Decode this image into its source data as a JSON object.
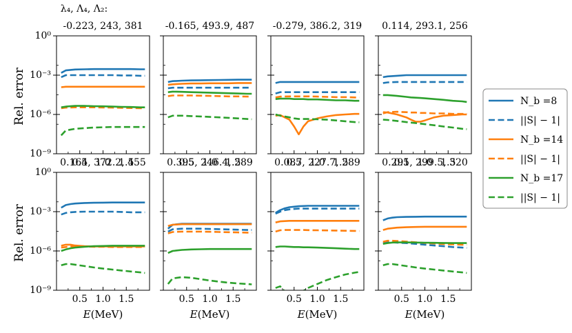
{
  "figure": {
    "param_header": "λ₄, Λ₄, Λ₂:",
    "xlabel": "E(MeV)",
    "ylabel": "Rel. error",
    "x_ticks": [
      0.5,
      1.0,
      1.5
    ],
    "xlim": [
      0.0,
      2.0
    ],
    "y_ticks": [
      1e-09,
      1e-06,
      0.001,
      1.0
    ],
    "y_tick_labels": [
      "10⁻⁹",
      "10⁻⁶",
      "10⁻³",
      "10⁰"
    ],
    "y_scale": "log",
    "ylim": [
      1e-09,
      1.0
    ],
    "legend_placement": "right",
    "colors": {
      "Nb8": "#1f77b4",
      "Nb14": "#ff7f0e",
      "Nb17": "#2ca02c"
    }
  },
  "legend": [
    {
      "label": "N_b =8",
      "color": "#1f77b4",
      "dash": false
    },
    {
      "label": "||S| − 1|",
      "color": "#1f77b4",
      "dash": true
    },
    {
      "label": "N_b =14",
      "color": "#ff7f0e",
      "dash": false
    },
    {
      "label": "||S| − 1|",
      "color": "#ff7f0e",
      "dash": true
    },
    {
      "label": "N_b =17",
      "color": "#2ca02c",
      "dash": false
    },
    {
      "label": "||S| − 1|",
      "color": "#2ca02c",
      "dash": true
    }
  ],
  "chart_data": [
    {
      "type": "line",
      "title": "-0.223, 243, 381",
      "xlabel": "",
      "ylabel": "Rel. error",
      "x": [
        0.1,
        0.2,
        0.4,
        0.6,
        0.8,
        1.0,
        1.2,
        1.4,
        1.6,
        1.8,
        1.9
      ],
      "series": [
        {
          "name": "N_b =8",
          "values": [
            0.0015,
            0.0023,
            0.0027,
            0.0028,
            0.0029,
            0.0029,
            0.0029,
            0.0029,
            0.0029,
            0.0028,
            0.0028
          ]
        },
        {
          "name": "||S| − 1|",
          "values": [
            0.0007,
            0.001,
            0.001,
            0.001,
            0.001,
            0.001,
            0.001,
            0.00095,
            0.00095,
            0.0009,
            0.0009
          ]
        },
        {
          "name": "N_b =14",
          "values": [
            0.00012,
            0.00013,
            0.00013,
            0.00013,
            0.00013,
            0.00013,
            0.00013,
            0.00013,
            0.00013,
            0.00013,
            0.00013
          ]
        },
        {
          "name": "||S| − 1|",
          "values": [
            3e-06,
            3.3e-06,
            3.5e-06,
            3.5e-06,
            3.5e-06,
            3.4e-06,
            3.3e-06,
            3.2e-06,
            3.1e-06,
            3e-06,
            3e-06
          ]
        },
        {
          "name": "N_b =17",
          "values": [
            3.5e-06,
            4e-06,
            4.5e-06,
            4.5e-06,
            4.3e-06,
            4.2e-06,
            4e-06,
            3.8e-06,
            3.7e-06,
            3.5e-06,
            3.5e-06
          ]
        },
        {
          "name": "||S| − 1|",
          "values": [
            2.5e-08,
            6e-08,
            8e-08,
            9e-08,
            1e-07,
            1.05e-07,
            1.1e-07,
            1.1e-07,
            1.1e-07,
            1.1e-07,
            1.1e-07
          ]
        }
      ]
    },
    {
      "type": "line",
      "title": "-0.165, 493.9, 487",
      "xlabel": "",
      "ylabel": "",
      "x": [
        0.1,
        0.2,
        0.4,
        0.6,
        0.8,
        1.0,
        1.2,
        1.4,
        1.6,
        1.8,
        1.9
      ],
      "series": [
        {
          "name": "N_b =8",
          "values": [
            0.0003,
            0.00035,
            0.00038,
            0.0004,
            0.00041,
            0.00042,
            0.00043,
            0.00044,
            0.00045,
            0.00045,
            0.00045
          ]
        },
        {
          "name": "||S| − 1|",
          "values": [
            0.0001,
            0.00011,
            0.00011,
            0.00011,
            0.00011,
            0.00011,
            0.00011,
            0.00011,
            0.00011,
            0.00011,
            0.00011
          ]
        },
        {
          "name": "N_b =14",
          "values": [
            0.00018,
            0.0002,
            0.00022,
            0.00023,
            0.00023,
            0.00024,
            0.00024,
            0.00024,
            0.00025,
            0.00025,
            0.00025
          ]
        },
        {
          "name": "||S| − 1|",
          "values": [
            2.5e-05,
            2.8e-05,
            2.8e-05,
            2.8e-05,
            2.7e-05,
            2.6e-05,
            2.5e-05,
            2.4e-05,
            2.4e-05,
            2.3e-05,
            2.3e-05
          ]
        },
        {
          "name": "N_b =17",
          "values": [
            5e-05,
            5.5e-05,
            5.3e-05,
            5e-05,
            4.8e-05,
            4.6e-05,
            4.4e-05,
            4.2e-05,
            4e-05,
            3.8e-05,
            3.8e-05
          ]
        },
        {
          "name": "||S| − 1|",
          "values": [
            6e-07,
            8e-07,
            8e-07,
            7.5e-07,
            7e-07,
            6.5e-07,
            6e-07,
            5.5e-07,
            5e-07,
            4.5e-07,
            4.3e-07
          ]
        }
      ]
    },
    {
      "type": "line",
      "title": "-0.279, 386.2, 319",
      "xlabel": "",
      "ylabel": "",
      "x": [
        0.1,
        0.2,
        0.4,
        0.5,
        0.6,
        0.7,
        0.8,
        1.0,
        1.2,
        1.4,
        1.6,
        1.8,
        1.9
      ],
      "series": [
        {
          "name": "N_b =8",
          "values": [
            0.00025,
            0.0003,
            0.0003,
            0.0003,
            0.0003,
            0.0003,
            0.0003,
            0.0003,
            0.0003,
            0.0003,
            0.0003,
            0.0003,
            0.0003
          ]
        },
        {
          "name": "||S| − 1|",
          "values": [
            4e-05,
            5e-05,
            5e-05,
            5e-05,
            5e-05,
            5e-05,
            5e-05,
            5e-05,
            5e-05,
            5e-05,
            5e-05,
            5e-05,
            5e-05
          ]
        },
        {
          "name": "N_b =14",
          "values": [
            8e-07,
            9e-07,
            4e-07,
            1.2e-07,
            3e-08,
            1.2e-07,
            3e-07,
            5e-07,
            7e-07,
            9e-07,
            1e-06,
            1.1e-06,
            1.1e-06
          ]
        },
        {
          "name": "||S| − 1|",
          "values": [
            2e-05,
            2.3e-05,
            2.4e-05,
            2.4e-05,
            2.4e-05,
            2.4e-05,
            2.4e-05,
            2.3e-05,
            2.2e-05,
            2.1e-05,
            2.1e-05,
            2e-05,
            2e-05
          ]
        },
        {
          "name": "N_b =17",
          "values": [
            1.5e-05,
            1.6e-05,
            1.6e-05,
            1.5e-05,
            1.5e-05,
            1.5e-05,
            1.4e-05,
            1.4e-05,
            1.3e-05,
            1.2e-05,
            1.2e-05,
            1.1e-05,
            1.1e-05
          ]
        },
        {
          "name": "||S| − 1|",
          "values": [
            1e-06,
            8e-07,
            6e-07,
            5e-07,
            4.5e-07,
            4.5e-07,
            4.5e-07,
            4.3e-07,
            4e-07,
            3.5e-07,
            3e-07,
            2.6e-07,
            2.5e-07
          ]
        }
      ]
    },
    {
      "type": "line",
      "title": "0.114, 293.1, 256",
      "xlabel": "",
      "ylabel": "",
      "x": [
        0.1,
        0.2,
        0.4,
        0.6,
        0.7,
        0.8,
        0.9,
        1.0,
        1.2,
        1.4,
        1.6,
        1.8,
        1.9
      ],
      "series": [
        {
          "name": "N_b =8",
          "values": [
            0.0007,
            0.0008,
            0.0009,
            0.001,
            0.001,
            0.001,
            0.001,
            0.001,
            0.001,
            0.001,
            0.001,
            0.001,
            0.001
          ]
        },
        {
          "name": "||S| − 1|",
          "values": [
            0.00025,
            0.00028,
            0.0003,
            0.0003,
            0.0003,
            0.0003,
            0.0003,
            0.0003,
            0.0003,
            0.0003,
            0.0003,
            0.0003,
            0.0003
          ]
        },
        {
          "name": "N_b =14",
          "values": [
            1.5e-06,
            1.4e-06,
            1e-06,
            6e-07,
            4e-07,
            2.8e-07,
            2.8e-07,
            3.5e-07,
            6e-07,
            8e-07,
            9e-07,
            1e-06,
            1e-06
          ]
        },
        {
          "name": "||S| − 1|",
          "values": [
            1.2e-06,
            1.5e-06,
            1.6e-06,
            1.5e-06,
            1.4e-06,
            1.4e-06,
            1.3e-06,
            1.3e-06,
            1.2e-06,
            1.2e-06,
            1.1e-06,
            1.1e-06,
            1.1e-06
          ]
        },
        {
          "name": "N_b =17",
          "values": [
            3e-05,
            3e-05,
            2.6e-05,
            2.2e-05,
            2e-05,
            1.9e-05,
            1.8e-05,
            1.7e-05,
            1.5e-05,
            1.3e-05,
            1.1e-05,
            1e-05,
            9e-06
          ]
        },
        {
          "name": "||S| − 1|",
          "values": [
            4e-07,
            3.8e-07,
            3.2e-07,
            2.6e-07,
            2.4e-07,
            2.2e-07,
            2e-07,
            1.8e-07,
            1.5e-07,
            1.2e-07,
            1e-07,
            8e-08,
            7.5e-08
          ]
        }
      ]
    },
    {
      "type": "line",
      "title": "0.164, 372.2, 455",
      "xlabel": "E(MeV)",
      "ylabel": "Rel. error",
      "x": [
        0.1,
        0.2,
        0.3,
        0.4,
        0.6,
        0.8,
        1.0,
        1.2,
        1.4,
        1.6,
        1.8,
        1.9
      ],
      "series": [
        {
          "name": "N_b =8",
          "values": [
            0.002,
            0.0032,
            0.0038,
            0.0042,
            0.0046,
            0.0048,
            0.0049,
            0.005,
            0.005,
            0.005,
            0.005,
            0.005
          ]
        },
        {
          "name": "||S| − 1|",
          "values": [
            0.0006,
            0.0008,
            0.0009,
            0.00095,
            0.001,
            0.001,
            0.001,
            0.001,
            0.00095,
            0.0009,
            0.0009,
            0.0009
          ]
        },
        {
          "name": "N_b =14",
          "values": [
            2.5e-06,
            3e-06,
            3e-06,
            2.6e-06,
            2.3e-06,
            2.2e-06,
            2.2e-06,
            2.2e-06,
            2.2e-06,
            2.2e-06,
            2.2e-06,
            2.2e-06
          ]
        },
        {
          "name": "||S| − 1|",
          "values": [
            1.8e-06,
            2e-06,
            2.2e-06,
            2.2e-06,
            2.2e-06,
            2.1e-06,
            2.1e-06,
            2e-06,
            2e-06,
            2e-06,
            2e-06,
            2e-06
          ]
        },
        {
          "name": "N_b =17",
          "values": [
            1e-06,
            1.3e-06,
            1.6e-06,
            1.8e-06,
            2.1e-06,
            2.3e-06,
            2.4e-06,
            2.5e-06,
            2.5e-06,
            2.5e-06,
            2.5e-06,
            2.5e-06
          ]
        },
        {
          "name": "||S| − 1|",
          "values": [
            8e-08,
            1e-07,
            1e-07,
            9e-08,
            7e-08,
            5.5e-08,
            4.5e-08,
            3.8e-08,
            3.2e-08,
            2.7e-08,
            2.3e-08,
            2.1e-08
          ]
        }
      ]
    },
    {
      "type": "line",
      "title": "0.395, 246.4, 289",
      "xlabel": "E(MeV)",
      "ylabel": "",
      "x": [
        0.1,
        0.2,
        0.4,
        0.6,
        0.8,
        1.0,
        1.2,
        1.4,
        1.6,
        1.8,
        1.9
      ],
      "series": [
        {
          "name": "N_b =8",
          "values": [
            5e-05,
            0.0001,
            0.00012,
            0.00012,
            0.00012,
            0.00012,
            0.00012,
            0.00012,
            0.00012,
            0.00012,
            0.00012
          ]
        },
        {
          "name": "||S| − 1|",
          "values": [
            3e-05,
            4.5e-05,
            5e-05,
            5e-05,
            5e-05,
            4.8e-05,
            4.6e-05,
            4.4e-05,
            4.2e-05,
            4e-05,
            4e-05
          ]
        },
        {
          "name": "N_b =14",
          "values": [
            8e-05,
            0.0001,
            0.00011,
            0.00011,
            0.00011,
            0.00011,
            0.00011,
            0.00011,
            0.00011,
            0.00011,
            0.00011
          ]
        },
        {
          "name": "||S| − 1|",
          "values": [
            2.2e-05,
            2.8e-05,
            3e-05,
            3e-05,
            3e-05,
            2.9e-05,
            2.8e-05,
            2.7e-05,
            2.6e-05,
            2.5e-05,
            2.5e-05
          ]
        },
        {
          "name": "N_b =17",
          "values": [
            7e-07,
            1e-06,
            1.2e-06,
            1.3e-06,
            1.35e-06,
            1.4e-06,
            1.4e-06,
            1.4e-06,
            1.4e-06,
            1.4e-06,
            1.4e-06
          ]
        },
        {
          "name": "||S| − 1|",
          "values": [
            3e-09,
            8e-09,
            1e-08,
            9e-09,
            7e-09,
            5.5e-09,
            4.5e-09,
            3.8e-09,
            3.3e-09,
            3e-09,
            2.8e-09
          ]
        }
      ]
    },
    {
      "type": "line",
      "title": "0.087, 227.7, 289",
      "xlabel": "E(MeV)",
      "ylabel": "",
      "x": [
        0.1,
        0.2,
        0.3,
        0.4,
        0.5,
        0.6,
        0.7,
        0.8,
        1.0,
        1.2,
        1.4,
        1.6,
        1.8,
        1.9
      ],
      "series": [
        {
          "name": "N_b =8",
          "values": [
            0.0008,
            0.0013,
            0.0018,
            0.0022,
            0.0024,
            0.0026,
            0.0027,
            0.0028,
            0.0028,
            0.0028,
            0.0028,
            0.0028,
            0.0028,
            0.0028
          ]
        },
        {
          "name": "||S| − 1|",
          "values": [
            0.0007,
            0.001,
            0.0013,
            0.0015,
            0.0016,
            0.0017,
            0.0017,
            0.0017,
            0.0017,
            0.0017,
            0.0017,
            0.0017,
            0.0017,
            0.0017
          ]
        },
        {
          "name": "N_b =14",
          "values": [
            0.00015,
            0.00018,
            0.00019,
            0.0002,
            0.0002,
            0.0002,
            0.0002,
            0.0002,
            0.0002,
            0.0002,
            0.0002,
            0.0002,
            0.0002,
            0.0002
          ]
        },
        {
          "name": "||S| − 1|",
          "values": [
            3e-05,
            3.8e-05,
            4e-05,
            4e-05,
            4e-05,
            4e-05,
            4e-05,
            3.9e-05,
            3.8e-05,
            3.7e-05,
            3.6e-05,
            3.5e-05,
            3.4e-05,
            3.3e-05
          ]
        },
        {
          "name": "N_b =17",
          "values": [
            2e-06,
            2.2e-06,
            2.2e-06,
            2.1e-06,
            2e-06,
            2e-06,
            1.9e-06,
            1.9e-06,
            1.8e-06,
            1.7e-06,
            1.6e-06,
            1.5e-06,
            1.4e-06,
            1.4e-06
          ]
        },
        {
          "name": "||S| − 1|",
          "values": [
            1.5e-09,
            2e-09,
            8e-10,
            5e-10,
            5e-10,
            6e-10,
            9e-10,
            1.5e-09,
            3e-09,
            6e-09,
            1e-08,
            1.6e-08,
            2.2e-08,
            2.5e-08
          ]
        }
      ]
    },
    {
      "type": "line",
      "title": "0.291, 299.5, 320",
      "xlabel": "E(MeV)",
      "ylabel": "",
      "x": [
        0.1,
        0.2,
        0.3,
        0.4,
        0.6,
        0.8,
        1.0,
        1.2,
        1.4,
        1.6,
        1.8,
        1.9
      ],
      "series": [
        {
          "name": "N_b =8",
          "values": [
            0.00022,
            0.0003,
            0.00035,
            0.00038,
            0.0004,
            0.00041,
            0.00042,
            0.00042,
            0.00042,
            0.00042,
            0.00042,
            0.00042
          ]
        },
        {
          "name": "||S| − 1|",
          "values": [
            4e-06,
            4.5e-06,
            4.5e-06,
            4.3e-06,
            4e-06,
            3.5e-06,
            3e-06,
            2.6e-06,
            2.3e-06,
            2e-06,
            1.8e-06,
            1.7e-06
          ]
        },
        {
          "name": "N_b =14",
          "values": [
            4e-05,
            5e-05,
            5.5e-05,
            6e-05,
            6.5e-05,
            6.8e-05,
            7e-05,
            7e-05,
            7e-05,
            7e-05,
            7e-05,
            7e-05
          ]
        },
        {
          "name": "||S| − 1|",
          "values": [
            5e-06,
            6e-06,
            6e-06,
            5.8e-06,
            5.2e-06,
            4.6e-06,
            4.1e-06,
            3.7e-06,
            3.4e-06,
            3.2e-06,
            3e-06,
            3e-06
          ]
        },
        {
          "name": "N_b =17",
          "values": [
            3.5e-06,
            4e-06,
            4.4e-06,
            4.5e-06,
            4.5e-06,
            4.4e-06,
            4.3e-06,
            4.2e-06,
            4.1e-06,
            4e-06,
            4e-06,
            4e-06
          ]
        },
        {
          "name": "||S| − 1|",
          "values": [
            8e-08,
            1e-07,
            1e-07,
            9e-08,
            7e-08,
            5.5e-08,
            4.5e-08,
            3.8e-08,
            3.2e-08,
            2.7e-08,
            2.3e-08,
            2.1e-08
          ]
        }
      ]
    }
  ]
}
